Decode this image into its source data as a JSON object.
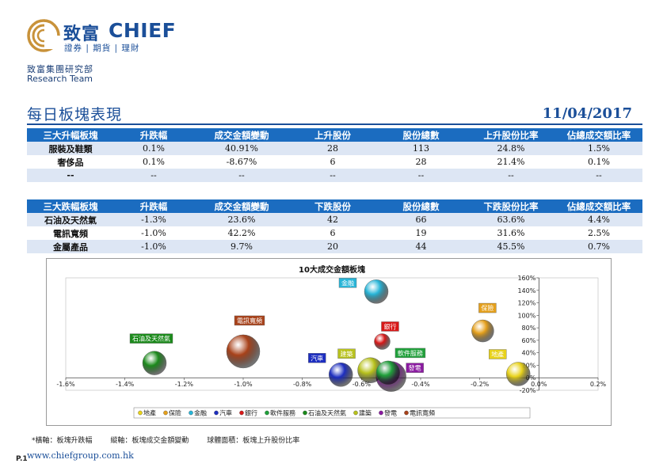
{
  "brand": {
    "name_cn": "致富",
    "name_en": "CHIEF",
    "tagline": "證券 | 期貨 | 理財",
    "department_cn": "致富集團研究部",
    "department_en": "Research Team",
    "accent": "#1b4f99",
    "logo_color": "#c8923a"
  },
  "report": {
    "title": "每日板塊表現",
    "date": "11/04/2017"
  },
  "top_gainers": {
    "headers": [
      "三大升幅板塊",
      "升跌幅",
      "成交金額變動",
      "上升股份",
      "股份總數",
      "上升股份比率",
      "佔總成交額比率"
    ],
    "rows": [
      [
        "服裝及鞋類",
        "0.1%",
        "40.91%",
        "28",
        "113",
        "24.8%",
        "1.5%"
      ],
      [
        "奢侈品",
        "0.1%",
        "-8.67%",
        "6",
        "28",
        "21.4%",
        "0.1%"
      ],
      [
        "--",
        "--",
        "--",
        "--",
        "--",
        "--",
        "--"
      ]
    ]
  },
  "top_losers": {
    "headers": [
      "三大跌幅板塊",
      "升跌幅",
      "成交金額變動",
      "下跌股份",
      "股份總數",
      "下跌股份比率",
      "佔總成交額比率"
    ],
    "rows": [
      [
        "石油及天然氣",
        "-1.3%",
        "23.6%",
        "42",
        "66",
        "63.6%",
        "4.4%"
      ],
      [
        "電訊寬頻",
        "-1.0%",
        "42.2%",
        "6",
        "19",
        "31.6%",
        "2.5%"
      ],
      [
        "金屬產品",
        "-1.0%",
        "9.7%",
        "20",
        "44",
        "45.5%",
        "0.7%"
      ]
    ]
  },
  "chart_data": {
    "type": "scatter",
    "title": "10大成交金額板塊",
    "xlim": [
      -1.6,
      0.2
    ],
    "ylim": [
      -20,
      160
    ],
    "x_ticks": [
      "-1.6%",
      "-1.4%",
      "-1.2%",
      "-1.0%",
      "-0.8%",
      "-0.6%",
      "-0.4%",
      "-0.2%",
      "0.0%",
      "0.2%"
    ],
    "y_ticks": [
      "-20%",
      "0%",
      "20%",
      "40%",
      "60%",
      "80%",
      "100%",
      "120%",
      "140%",
      "160%"
    ],
    "legend_position": "bottom",
    "series": [
      {
        "name": "地產",
        "x": -0.07,
        "y": 6,
        "size": 15,
        "color": "#e8d21a"
      },
      {
        "name": "保險",
        "x": -0.19,
        "y": 75,
        "size": 14,
        "color": "#e5a01c"
      },
      {
        "name": "金融",
        "x": -0.55,
        "y": 138,
        "size": 15,
        "color": "#28b5d8"
      },
      {
        "name": "汽車",
        "x": -0.67,
        "y": 5,
        "size": 15,
        "color": "#1d2ec0"
      },
      {
        "name": "銀行",
        "x": -0.53,
        "y": 58,
        "size": 10,
        "color": "#d81818"
      },
      {
        "name": "軟件服務",
        "x": -0.51,
        "y": 8,
        "size": 15,
        "color": "#1fa03a"
      },
      {
        "name": "石油及天然氣",
        "x": -1.3,
        "y": 23.6,
        "size": 15,
        "color": "#1b8a1b"
      },
      {
        "name": "建築",
        "x": -0.57,
        "y": 12,
        "size": 16,
        "color": "#b8c21c"
      },
      {
        "name": "發電",
        "x": -0.5,
        "y": 2,
        "size": 19,
        "color": "#8a1aa0"
      },
      {
        "name": "電訊寬頻",
        "x": -1.0,
        "y": 42.2,
        "size": 21,
        "color": "#a8421a"
      }
    ]
  },
  "footnote": "*橫軸：板塊升跌幅        縱軸：板塊成交金額變動        球體面積：板塊上升股份比率",
  "footer": {
    "page": "P.1",
    "website": "www.chiefgroup.com.hk"
  }
}
